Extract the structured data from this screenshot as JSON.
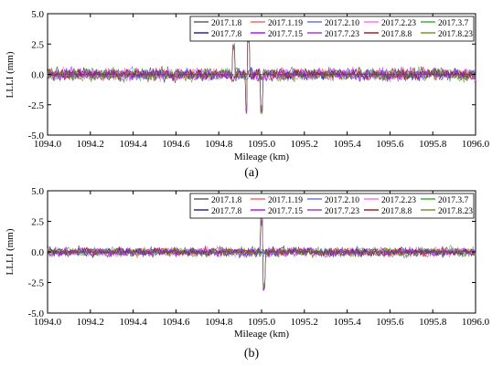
{
  "chart_data": [
    {
      "type": "line",
      "panel_label": "(a)",
      "xlabel": "Mileage (km)",
      "ylabel": "LLLI (mm)",
      "xlim": [
        1094.0,
        1096.0
      ],
      "ylim": [
        -5.0,
        5.0
      ],
      "xticks": [
        "1094.0",
        "1094.2",
        "1094.4",
        "1094.6",
        "1094.8",
        "1095.0",
        "1095.2",
        "1095.4",
        "1095.6",
        "1095.8",
        "1096.0"
      ],
      "yticks": [
        "5.0",
        "2.5",
        "0.0",
        "-2.5",
        "-5.0"
      ],
      "legend_position": "top-right",
      "series": [
        {
          "name": "2017.1.8",
          "color": "#555555"
        },
        {
          "name": "2017.1.19",
          "color": "#ff5a5a"
        },
        {
          "name": "2017.2.10",
          "color": "#5a6aff"
        },
        {
          "name": "2017.2.23",
          "color": "#ff66ff"
        },
        {
          "name": "2017.3.7",
          "color": "#33aa33"
        },
        {
          "name": "2017.7.8",
          "color": "#1a1a8c"
        },
        {
          "name": "2017.7.15",
          "color": "#b300ff"
        },
        {
          "name": "2017.7.23",
          "color": "#9933cc"
        },
        {
          "name": "2017.8.8",
          "color": "#a01010"
        },
        {
          "name": "2017.8.23",
          "color": "#6b8e23"
        }
      ],
      "typical_amplitude": 0.6,
      "peaks": [
        {
          "x": 1094.87,
          "y": 2.6
        },
        {
          "x": 1094.93,
          "y": -3.3
        },
        {
          "x": 1094.94,
          "y": 3.4
        },
        {
          "x": 1095.0,
          "y": -3.3
        }
      ]
    },
    {
      "type": "line",
      "panel_label": "(b)",
      "xlabel": "Mileage (km)",
      "ylabel": "LLLI (mm)",
      "xlim": [
        1094.0,
        1096.0
      ],
      "ylim": [
        -5.0,
        5.0
      ],
      "xticks": [
        "1094.0",
        "1094.2",
        "1094.4",
        "1094.6",
        "1094.8",
        "1095.0",
        "1095.2",
        "1095.4",
        "1095.6",
        "1095.8",
        "1096.0"
      ],
      "yticks": [
        "5.0",
        "2.5",
        "0.0",
        "-2.5",
        "-5.0"
      ],
      "legend_position": "top-right",
      "series": [
        {
          "name": "2017.1.8",
          "color": "#555555"
        },
        {
          "name": "2017.1.19",
          "color": "#ff5a5a"
        },
        {
          "name": "2017.2.10",
          "color": "#5a6aff"
        },
        {
          "name": "2017.2.23",
          "color": "#ff66ff"
        },
        {
          "name": "2017.3.7",
          "color": "#33aa33"
        },
        {
          "name": "2017.7.8",
          "color": "#1a1a8c"
        },
        {
          "name": "2017.7.15",
          "color": "#b300ff"
        },
        {
          "name": "2017.7.23",
          "color": "#9933cc"
        },
        {
          "name": "2017.8.8",
          "color": "#a01010"
        },
        {
          "name": "2017.8.23",
          "color": "#6b8e23"
        }
      ],
      "typical_amplitude": 0.45,
      "peaks": [
        {
          "x": 1095.0,
          "y": 2.8
        },
        {
          "x": 1095.01,
          "y": -3.2
        }
      ]
    }
  ]
}
